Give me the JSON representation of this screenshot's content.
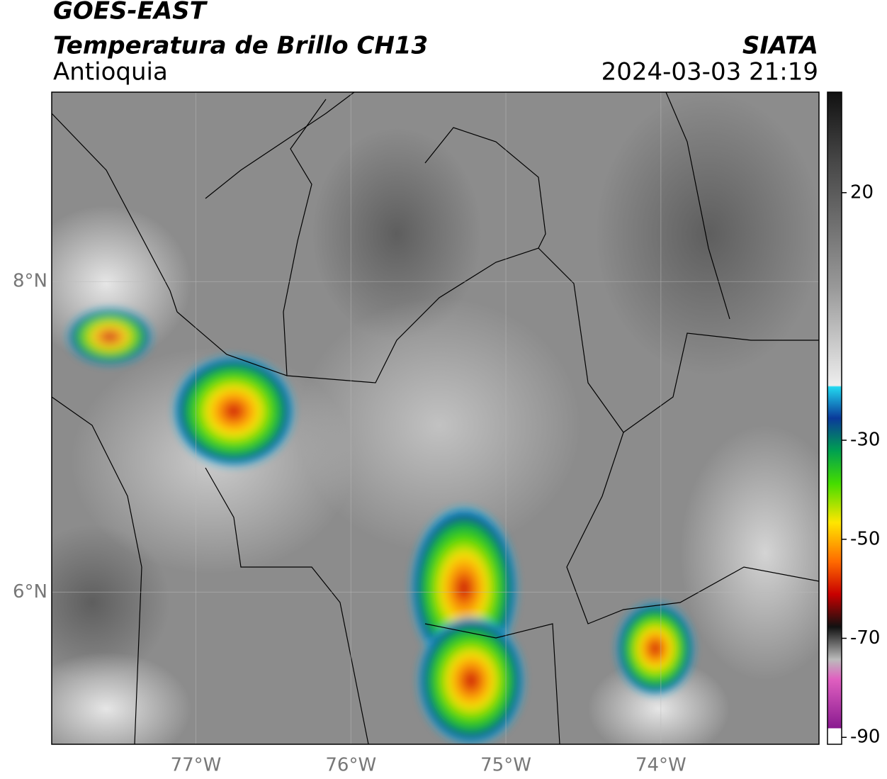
{
  "header": {
    "title": "GOES-EAST",
    "subtitle": "Temperatura de Brillo CH13",
    "region": "Antioquia",
    "source": "SIATA",
    "datetime": "2024-03-03 21:19"
  },
  "map": {
    "xlim": [
      -77.93,
      -72.98
    ],
    "ylim": [
      5.02,
      9.22
    ],
    "xticks": [
      {
        "value": -77,
        "label": "77°W"
      },
      {
        "value": -76,
        "label": "76°W"
      },
      {
        "value": -75,
        "label": "75°W"
      },
      {
        "value": -74,
        "label": "74°W"
      }
    ],
    "yticks": [
      {
        "value": 6,
        "label": "6°N"
      },
      {
        "value": 8,
        "label": "8°N"
      }
    ],
    "grid": true
  },
  "colorbar": {
    "lim": [
      -91.4,
      40.3
    ],
    "ticks": [
      -90,
      -70,
      -50,
      -30,
      20
    ]
  }
}
